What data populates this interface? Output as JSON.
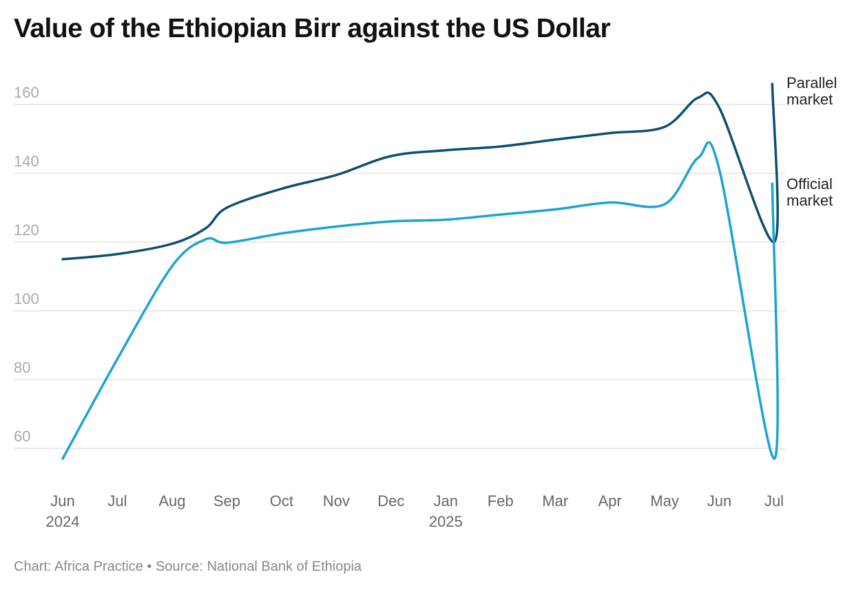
{
  "chart_data": {
    "type": "line",
    "title": "Value of the Ethiopian Birr against the US Dollar",
    "footer": "Chart: Africa Practice • Source: National Bank of Ethiopia",
    "ylim": [
      55,
      168
    ],
    "yticks": [
      60,
      80,
      100,
      120,
      140,
      160
    ],
    "xticks": [
      {
        "label": "Jun",
        "sub": "2024",
        "date": "2024-06-01"
      },
      {
        "label": "Jul",
        "sub": "",
        "date": "2024-07-01"
      },
      {
        "label": "Aug",
        "sub": "",
        "date": "2024-08-01"
      },
      {
        "label": "Sep",
        "sub": "",
        "date": "2024-09-01"
      },
      {
        "label": "Oct",
        "sub": "",
        "date": "2024-10-01"
      },
      {
        "label": "Nov",
        "sub": "",
        "date": "2024-11-01"
      },
      {
        "label": "Dec",
        "sub": "",
        "date": "2024-12-01"
      },
      {
        "label": "Jan",
        "sub": "2025",
        "date": "2025-01-01"
      },
      {
        "label": "Feb",
        "sub": "",
        "date": "2025-02-01"
      },
      {
        "label": "Mar",
        "sub": "",
        "date": "2025-03-01"
      },
      {
        "label": "Apr",
        "sub": "",
        "date": "2025-04-01"
      },
      {
        "label": "May",
        "sub": "",
        "date": "2025-05-01"
      },
      {
        "label": "Jun",
        "sub": "",
        "date": "2025-06-01"
      },
      {
        "label": "Jul",
        "sub": "",
        "date": "2025-07-01"
      }
    ],
    "grid": true,
    "legend": "direct labels at right end of lines",
    "x": [
      "2024-06-01",
      "2024-07-01",
      "2024-08-01",
      "2024-08-20",
      "2024-09-01",
      "2024-10-01",
      "2024-11-01",
      "2024-12-01",
      "2025-01-01",
      "2025-02-01",
      "2025-03-01",
      "2025-04-01",
      "2025-05-01",
      "2025-05-20",
      "2025-06-01",
      "2025-07-01",
      "2025-06-30"
    ],
    "series": [
      {
        "name": "Parallel market",
        "color": "#0b4f71",
        "values": [
          115,
          116.5,
          119.5,
          124,
          130,
          135.5,
          139.5,
          145,
          146.7,
          147.8,
          149.8,
          151.7,
          153.5,
          162,
          159,
          120,
          166
        ]
      },
      {
        "name": "Official market",
        "color": "#1ba3d1",
        "values": [
          57,
          86,
          113,
          120.8,
          119.8,
          122.5,
          124.5,
          126,
          126.5,
          128,
          129.5,
          131.5,
          131,
          144.5,
          141,
          57,
          137
        ]
      }
    ],
    "series_labels": [
      [
        "Parallel",
        "market"
      ],
      [
        "Official",
        "market"
      ]
    ]
  }
}
